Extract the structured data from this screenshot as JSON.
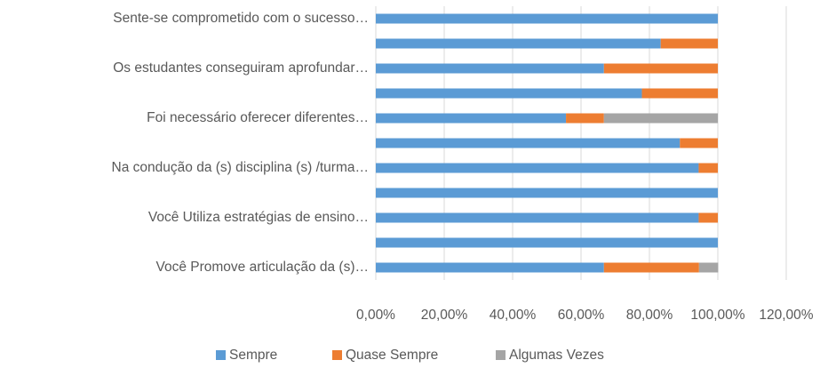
{
  "chart_data": {
    "type": "stacked_barh",
    "categories": [
      "Sente-se comprometido com o sucesso…",
      null,
      "Os estudantes conseguiram aprofundar…",
      null,
      "Foi necessário oferecer diferentes…",
      null,
      "Na condução da (s) disciplina (s) /turma…",
      null,
      "Você Utiliza estratégias de ensino…",
      null,
      "Você Promove articulação da (s)…"
    ],
    "series": [
      {
        "name": "Sempre",
        "color": "#5b9bd5",
        "values": [
          100,
          83.3,
          66.7,
          77.8,
          55.6,
          88.9,
          94.4,
          100,
          94.4,
          100,
          66.7
        ]
      },
      {
        "name": "Quase Sempre",
        "color": "#ed7d31",
        "values": [
          null,
          16.7,
          33.3,
          22.2,
          11.1,
          11.1,
          5.6,
          null,
          5.6,
          null,
          27.8
        ]
      },
      {
        "name": "Algumas Vezes",
        "color": "#a5a5a5",
        "values": [
          null,
          null,
          null,
          null,
          33.3,
          null,
          null,
          null,
          null,
          null,
          5.6
        ]
      }
    ],
    "xlim": [
      0,
      120
    ],
    "xticks": [
      {
        "value": 0,
        "label": "0,00%"
      },
      {
        "value": 20,
        "label": "20,00%"
      },
      {
        "value": 40,
        "label": "40,00%"
      },
      {
        "value": 60,
        "label": "60,00%"
      },
      {
        "value": 80,
        "label": "80,00%"
      },
      {
        "value": 100,
        "label": "100,00%"
      },
      {
        "value": 120,
        "label": "120,00%"
      }
    ],
    "grid": true,
    "legend": "bottom"
  }
}
